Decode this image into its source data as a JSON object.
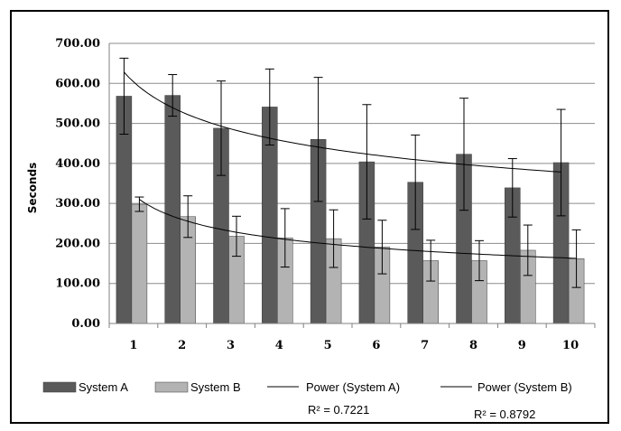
{
  "chart_data": {
    "type": "bar",
    "title": "",
    "xlabel": "",
    "ylabel": "Seconds",
    "ylim": [
      0,
      700
    ],
    "yticks": [
      "0.00",
      "100.00",
      "200.00",
      "300.00",
      "400.00",
      "500.00",
      "600.00",
      "700.00"
    ],
    "categories": [
      "1",
      "2",
      "3",
      "4",
      "5",
      "6",
      "7",
      "8",
      "9",
      "10"
    ],
    "grid": "horizontal",
    "legend_position": "bottom",
    "series": [
      {
        "name": "System A",
        "color": "#5a5a5a",
        "values": [
          568,
          570,
          488,
          541,
          460,
          404,
          353,
          423,
          339,
          402
        ],
        "error_plus": [
          95,
          52,
          118,
          95,
          155,
          143,
          118,
          140,
          73,
          133
        ],
        "error_minus": [
          95,
          52,
          118,
          95,
          155,
          143,
          118,
          140,
          73,
          133
        ]
      },
      {
        "name": "System B",
        "color": "#b3b3b3",
        "values": [
          298,
          267,
          218,
          214,
          212,
          191,
          157,
          157,
          183,
          162
        ],
        "error_plus": [
          18,
          52,
          50,
          73,
          72,
          67,
          51,
          50,
          63,
          72
        ],
        "error_minus": [
          18,
          52,
          50,
          73,
          72,
          67,
          51,
          50,
          63,
          72
        ]
      }
    ],
    "trendlines": [
      {
        "name": "Power (System A)",
        "fit": "power",
        "series": "System A",
        "color": "#000000",
        "coef": 628,
        "exponent": -0.22,
        "r2_label": "R² = 0.7221"
      },
      {
        "name": "Power (System B)",
        "fit": "power",
        "series": "System B",
        "color": "#000000",
        "coef": 310,
        "exponent": -0.28,
        "r2_label": "R² = 0.8792"
      }
    ]
  }
}
